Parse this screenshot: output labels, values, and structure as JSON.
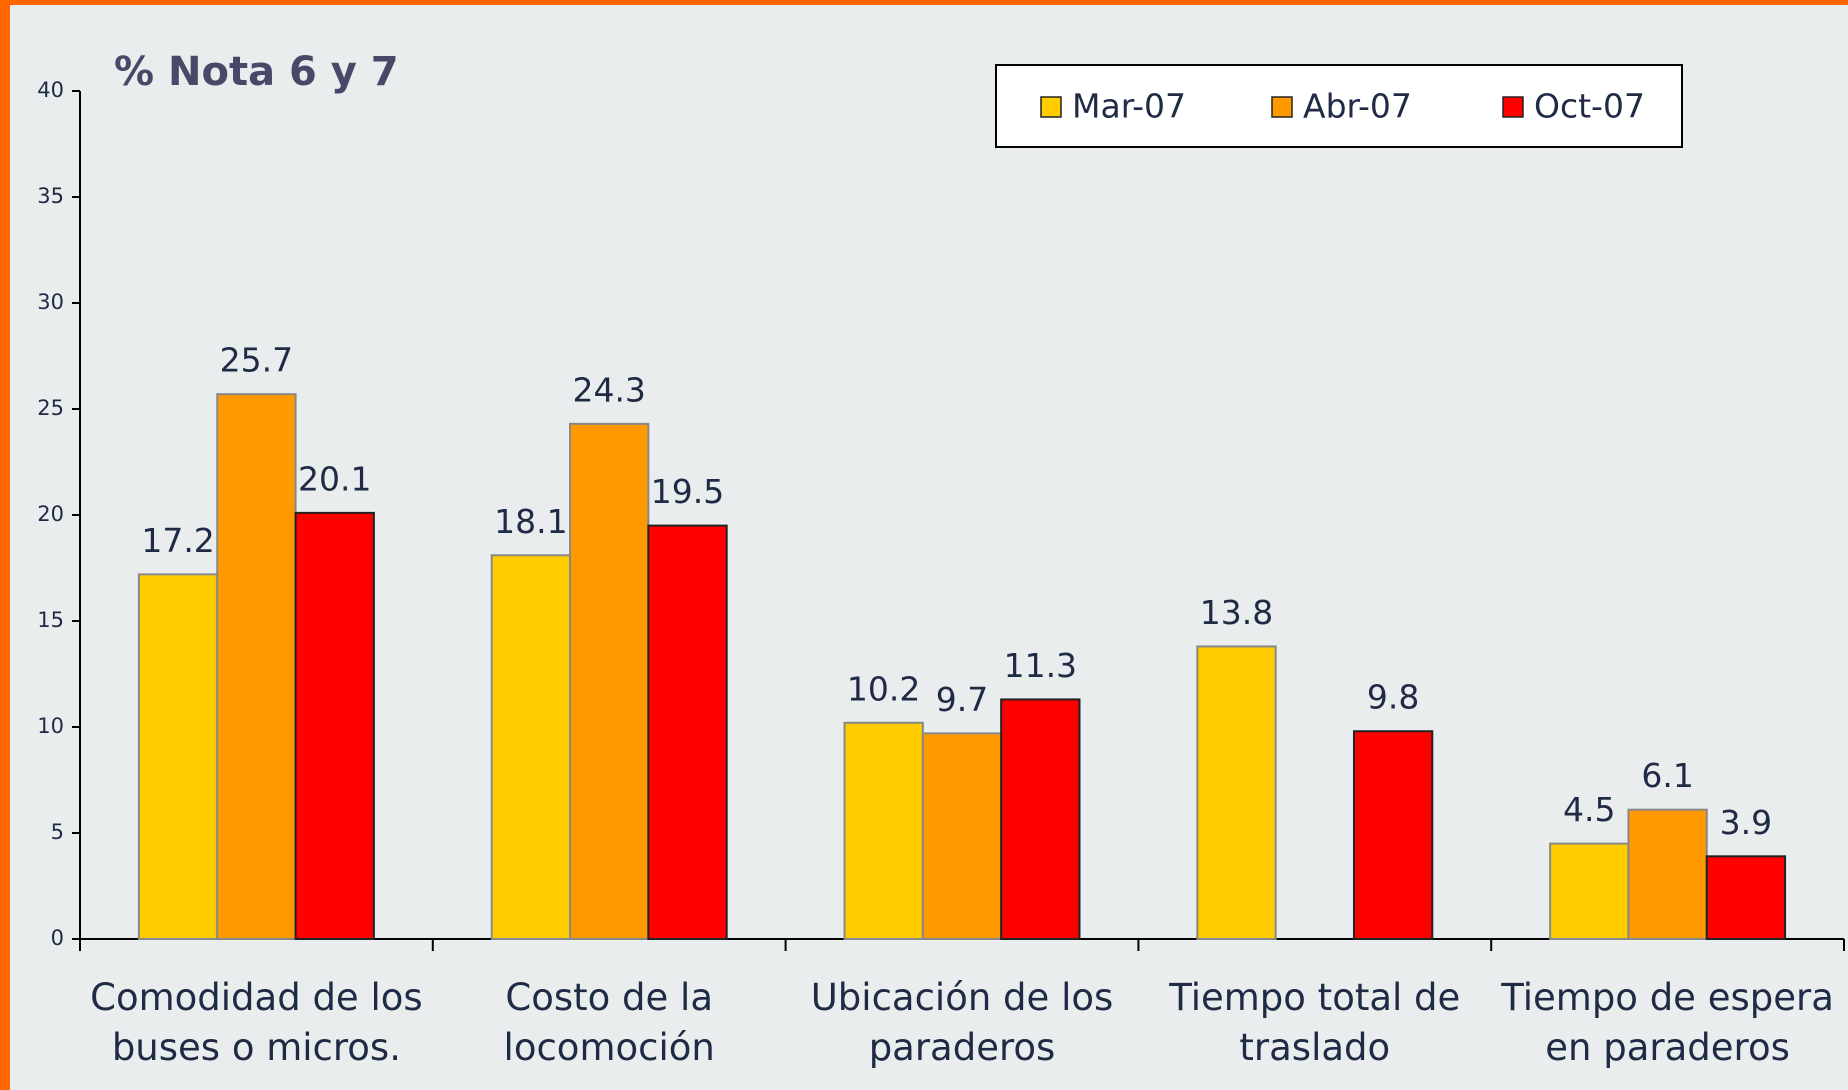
{
  "chart_data": {
    "type": "bar",
    "title": "% Nota 6 y 7",
    "categories": [
      "Comodidad de los buses o micros.",
      "Costo de la locomoción",
      "Ubicación de los paraderos",
      "Tiempo total de traslado",
      "Tiempo de espera en paraderos"
    ],
    "series": [
      {
        "name": "Mar-07",
        "color": "#ffcc00",
        "values": [
          17.2,
          18.1,
          10.2,
          13.8,
          4.5
        ]
      },
      {
        "name": "Abr-07",
        "color": "#ff9900",
        "values": [
          25.7,
          24.3,
          9.7,
          null,
          6.1
        ]
      },
      {
        "name": "Oct-07",
        "color": "#ff0000",
        "values": [
          20.1,
          19.5,
          11.3,
          9.8,
          3.9
        ]
      }
    ],
    "ylim": [
      0,
      40
    ],
    "yticks": [
      0,
      5,
      10,
      15,
      20,
      25,
      30,
      35,
      40
    ],
    "legend": "top-right",
    "grid": false
  }
}
